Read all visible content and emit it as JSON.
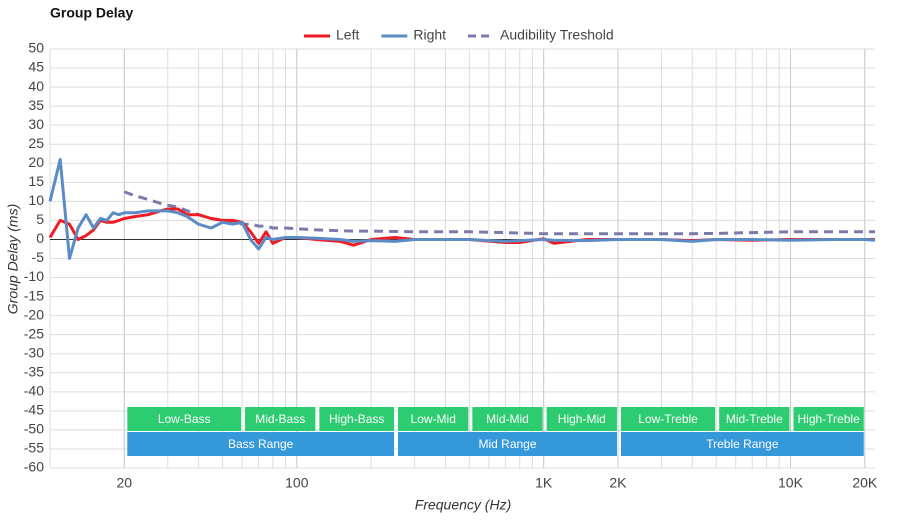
{
  "chart_data": {
    "type": "line",
    "title": "Group Delay",
    "xlabel": "Frequency (Hz)",
    "ylabel": "Group Delay (ms)",
    "xscale": "log",
    "grid": true,
    "legend": "top",
    "xlim": [
      10,
      22000
    ],
    "ylim": [
      -60,
      50
    ],
    "xticks": [
      20,
      100,
      {
        "value": 1000,
        "label": "1K"
      },
      {
        "value": 2000,
        "label": "2K"
      },
      {
        "value": 10000,
        "label": "10K"
      },
      {
        "value": 20000,
        "label": "20K"
      }
    ],
    "yticks": [
      50,
      45,
      40,
      35,
      30,
      25,
      20,
      15,
      10,
      5,
      0,
      -5,
      -10,
      -15,
      -20,
      -25,
      -30,
      -35,
      -40,
      -45,
      -50,
      -55,
      -60
    ],
    "x": [
      10,
      11,
      12,
      13,
      14,
      15,
      16,
      17,
      18,
      19,
      20,
      22,
      25,
      28,
      30,
      33,
      36,
      40,
      45,
      50,
      55,
      60,
      65,
      70,
      75,
      80,
      90,
      100,
      120,
      150,
      170,
      200,
      250,
      300,
      400,
      500,
      700,
      800,
      1000,
      1100,
      1500,
      2000,
      3000,
      4000,
      5000,
      7000,
      10000,
      15000,
      20000,
      22000
    ],
    "series": [
      {
        "name": "Left",
        "color": "#ee1c25",
        "dashed": false,
        "values": [
          0.5,
          5,
          4,
          0,
          1,
          2.5,
          5,
          4.5,
          4.5,
          5,
          5.5,
          6,
          6.5,
          7.5,
          8,
          8,
          6.5,
          6.5,
          5.5,
          5,
          5,
          4.5,
          2,
          -1,
          2,
          -1,
          0.5,
          0.5,
          0,
          -0.5,
          -1.5,
          0,
          0.5,
          0,
          0,
          0,
          -0.8,
          -0.8,
          0.2,
          -1,
          0,
          0,
          0,
          -0.3,
          0,
          -0.2,
          0,
          0,
          0,
          0
        ]
      },
      {
        "name": "Right",
        "color": "#5b8cc6",
        "dashed": false,
        "values": [
          10,
          21,
          -5,
          3,
          6.5,
          3,
          5.5,
          5,
          7,
          6.5,
          7,
          7,
          7.5,
          7.5,
          7.5,
          7,
          6,
          4,
          3,
          4.5,
          4,
          4.5,
          0,
          -2.5,
          0.5,
          0,
          0.5,
          0.5,
          0.3,
          0,
          -0.5,
          -0.3,
          -0.5,
          0,
          0,
          0,
          -0.5,
          -0.3,
          0,
          -0.2,
          -0.3,
          0,
          0,
          -0.5,
          0,
          0,
          -0.2,
          0,
          0,
          -0.2
        ]
      },
      {
        "name": "Audibility Treshold",
        "color": "#7b7bab",
        "dashed": true,
        "values": [
          null,
          null,
          null,
          null,
          null,
          null,
          null,
          null,
          null,
          null,
          12.5,
          11.5,
          10.5,
          9.5,
          9,
          8.5,
          7.5,
          6.5,
          5.5,
          5,
          4.5,
          4,
          4,
          3.5,
          3.5,
          3,
          3,
          2.8,
          2.5,
          2.3,
          2.2,
          2.2,
          2.1,
          2,
          2,
          2,
          1.8,
          1.7,
          1.5,
          1.5,
          1.5,
          1.5,
          1.5,
          1.5,
          1.6,
          1.8,
          2,
          2,
          2,
          2
        ]
      }
    ],
    "regions": [
      [
        {
          "label": "Low-Bass",
          "from": 20,
          "to": 60,
          "color": "#2ecc71"
        },
        {
          "label": "Mid-Bass",
          "from": 60,
          "to": 120,
          "color": "#2ecc71"
        },
        {
          "label": "High-Bass",
          "from": 120,
          "to": 250,
          "color": "#2ecc71"
        },
        {
          "label": "Low-Mid",
          "from": 250,
          "to": 500,
          "color": "#2ecc71"
        },
        {
          "label": "Mid-Mid",
          "from": 500,
          "to": 1000,
          "color": "#2ecc71"
        },
        {
          "label": "High-Mid",
          "from": 1000,
          "to": 2000,
          "color": "#2ecc71"
        },
        {
          "label": "Low-Treble",
          "from": 2000,
          "to": 5000,
          "color": "#2ecc71"
        },
        {
          "label": "Mid-Treble",
          "from": 5000,
          "to": 10000,
          "color": "#2ecc71"
        },
        {
          "label": "High-Treble",
          "from": 10000,
          "to": 20000,
          "color": "#2ecc71"
        }
      ],
      [
        {
          "label": "Bass Range",
          "from": 20,
          "to": 250,
          "color": "#3498db"
        },
        {
          "label": "Mid Range",
          "from": 250,
          "to": 2000,
          "color": "#3498db"
        },
        {
          "label": "Treble Range",
          "from": 2000,
          "to": 20000,
          "color": "#3498db"
        }
      ]
    ]
  }
}
